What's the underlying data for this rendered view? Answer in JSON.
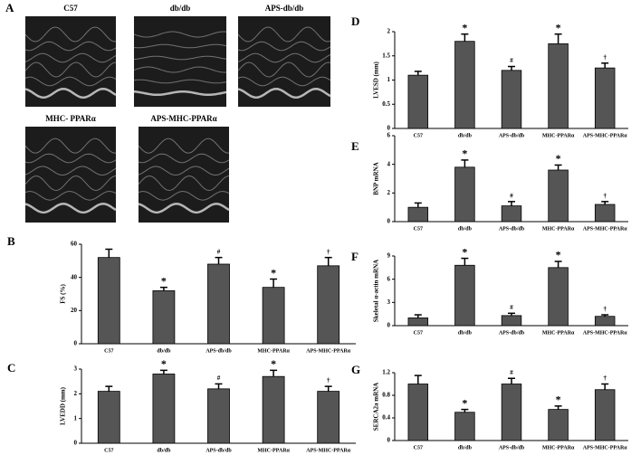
{
  "panel_a": {
    "label": "A",
    "images": [
      "C57",
      "db/db",
      "APS-db/db",
      "MHC- PPARα",
      "APS-MHC-PPARα"
    ]
  },
  "chart_data": [
    {
      "type": "bar",
      "label": "B",
      "ylabel": "FS (%)",
      "categories": [
        "C57",
        "db/db",
        "APS-db/db",
        "MHC-PPARα",
        "APS-MHC-PPARα"
      ],
      "values": [
        52,
        32,
        48,
        34,
        47
      ],
      "errors": [
        5,
        2,
        4,
        5,
        5
      ],
      "annotations": [
        null,
        "*",
        "#",
        "*",
        "†"
      ],
      "color": "#555555",
      "ylim": [
        0,
        60
      ],
      "yticks": [
        0,
        20,
        40,
        60
      ]
    },
    {
      "type": "bar",
      "label": "C",
      "ylabel": "LVEDD (mm)",
      "categories": [
        "C57",
        "db/db",
        "APS-db/db",
        "MHC-PPARα",
        "APS-MHC-PPARα"
      ],
      "values": [
        2.1,
        2.8,
        2.2,
        2.7,
        2.1
      ],
      "errors": [
        0.2,
        0.15,
        0.2,
        0.25,
        0.2
      ],
      "annotations": [
        null,
        "*",
        "#",
        "*",
        "†"
      ],
      "color": "#555555",
      "ylim": [
        0,
        3
      ],
      "yticks": [
        0,
        1,
        2,
        3
      ]
    },
    {
      "type": "bar",
      "label": "D",
      "ylabel": "LVESD (mm)",
      "categories": [
        "C57",
        "db/db",
        "APS-db/db",
        "MHC-PPARα",
        "APS-MHC-PPARα"
      ],
      "values": [
        1.1,
        1.8,
        1.2,
        1.75,
        1.25
      ],
      "errors": [
        0.08,
        0.15,
        0.08,
        0.2,
        0.1
      ],
      "annotations": [
        null,
        "*",
        "#",
        "*",
        "†"
      ],
      "color": "#555555",
      "ylim": [
        0,
        2
      ],
      "yticks": [
        0,
        0.5,
        1,
        1.5,
        2
      ]
    },
    {
      "type": "bar",
      "label": "E",
      "ylabel": "BNP mRNA",
      "categories": [
        "C57",
        "db/db",
        "APS-db/db",
        "MHC-PPARα",
        "APS-MHC-PPARα"
      ],
      "values": [
        1,
        3.8,
        1.1,
        3.6,
        1.2
      ],
      "errors": [
        0.3,
        0.5,
        0.3,
        0.35,
        0.2
      ],
      "annotations": [
        null,
        "*",
        "#",
        "*",
        "†"
      ],
      "color": "#555555",
      "ylim": [
        0,
        6
      ],
      "yticks": [
        0,
        2,
        4,
        6
      ]
    },
    {
      "type": "bar",
      "label": "F",
      "ylabel": "Skeletal α-actin mRNA",
      "categories": [
        "C57",
        "db/db",
        "APS-db/db",
        "MHC-PPARα",
        "APS-MHC-PPARα"
      ],
      "values": [
        1,
        7.8,
        1.3,
        7.5,
        1.2
      ],
      "errors": [
        0.4,
        0.9,
        0.3,
        0.8,
        0.2
      ],
      "annotations": [
        null,
        "*",
        "#",
        "*",
        "†"
      ],
      "color": "#555555",
      "ylim": [
        0,
        9
      ],
      "yticks": [
        0,
        3,
        6,
        9
      ]
    },
    {
      "type": "bar",
      "label": "G",
      "ylabel": "SERCA2a mRNA",
      "categories": [
        "C57",
        "db/db",
        "APS-db/db",
        "MHC-PPARα",
        "APS-MHC-PPARα"
      ],
      "values": [
        1.0,
        0.5,
        1.0,
        0.55,
        0.9
      ],
      "errors": [
        0.15,
        0.05,
        0.1,
        0.06,
        0.1
      ],
      "annotations": [
        null,
        "*",
        "#",
        "*",
        "†"
      ],
      "color": "#555555",
      "ylim": [
        0,
        1.2
      ],
      "yticks": [
        0,
        0.4,
        0.8,
        1.2
      ]
    }
  ]
}
